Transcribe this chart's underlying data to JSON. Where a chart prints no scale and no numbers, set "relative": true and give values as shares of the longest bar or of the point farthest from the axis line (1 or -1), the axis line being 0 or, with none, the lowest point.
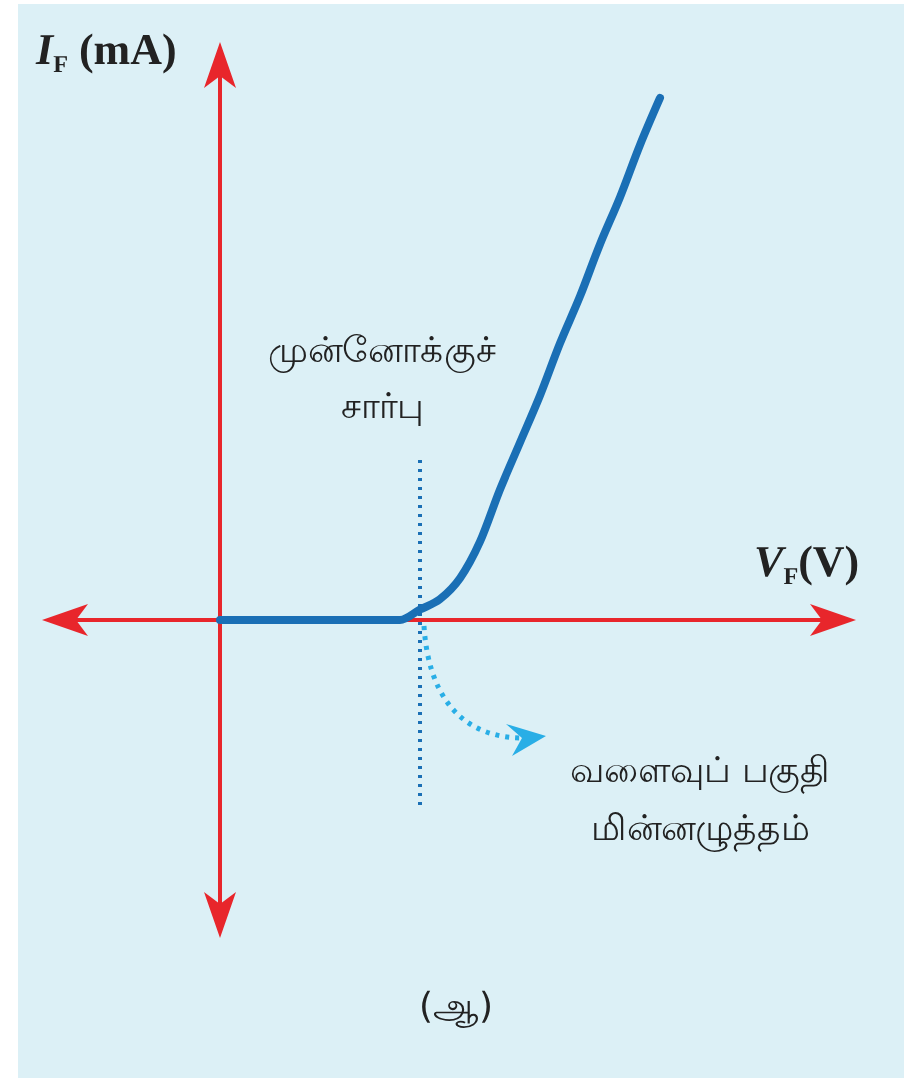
{
  "chart_data": {
    "type": "line",
    "relative": true,
    "xlabel": "V$_{F}$(V)",
    "ylabel": "I$_{F}$ (mA)",
    "categories": [
      null,
      null,
      null,
      null,
      null,
      null,
      null,
      null,
      null,
      null,
      null,
      null,
      null,
      null,
      null,
      null,
      null,
      null,
      null,
      null,
      null,
      null,
      null
    ],
    "series": [
      {
        "color": "#1a6fb5",
        "values": [
          0,
          0,
          0,
          0,
          0,
          0,
          0,
          0,
          0,
          0,
          0.02,
          0.04,
          0.08,
          0.15,
          0.25,
          0.34,
          0.43,
          0.53,
          0.62,
          0.72,
          0.81,
          0.91,
          1
        ]
      }
    ],
    "marker": "none",
    "line_style": "solid",
    "annotations": [
      "முன்னோக்குச் சார்பு",
      "வளைவுப் பகுதி மின்னழுத்தம்",
      "(ஆ)"
    ]
  }
}
